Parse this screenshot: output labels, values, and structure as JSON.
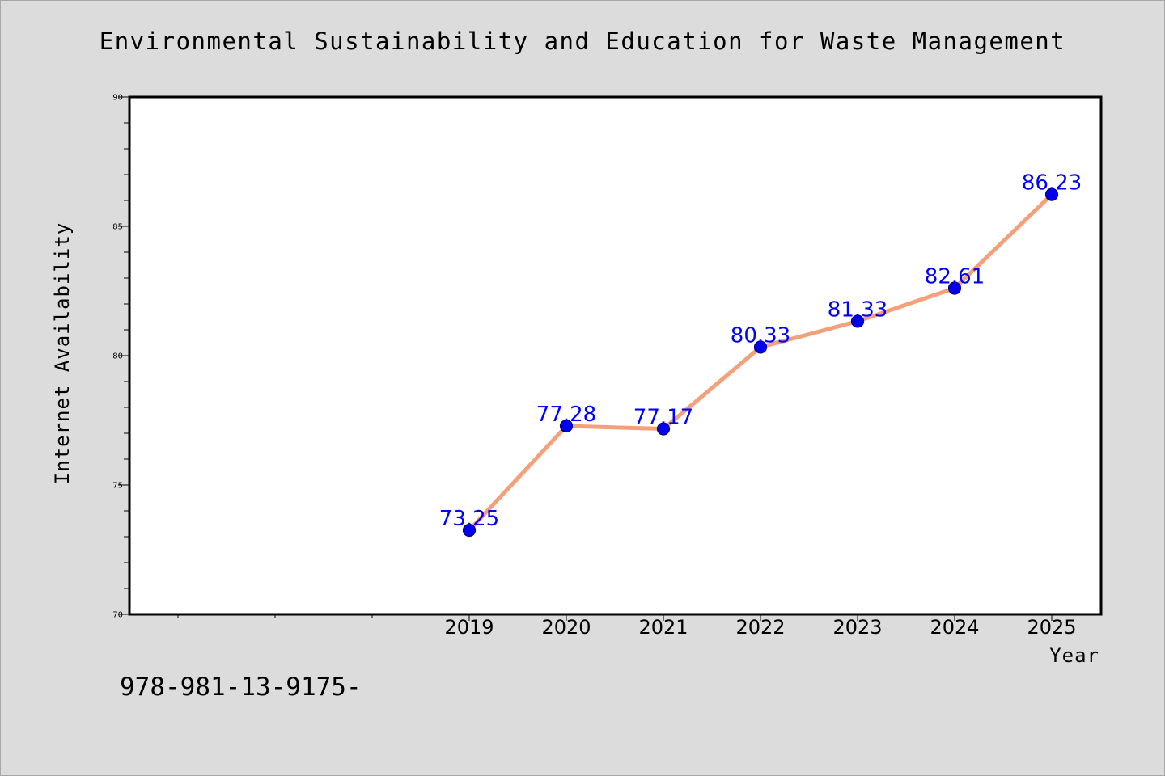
{
  "title": "Environmental Sustainability and Education for Waste Management",
  "footer_text": "978-981-13-9175-",
  "colors": {
    "background": "#dcdcdc",
    "plot_background": "#ffffff",
    "line": "#f4a07a",
    "marker": "#0000ee",
    "data_label": "#0000ff"
  },
  "chart_data": {
    "type": "line",
    "title": "Environmental Sustainability and Education for Waste Management",
    "xlabel": "Year",
    "ylabel": "Internet Availability",
    "x": [
      "2019",
      "2020",
      "2021",
      "2022",
      "2023",
      "2024",
      "2025"
    ],
    "series": [
      {
        "values": [
          73.25,
          77.28,
          77.17,
          80.33,
          81.33,
          82.61,
          86.23
        ],
        "labels": [
          "73.25",
          "77.28",
          "77.17",
          "80.33",
          "81.33",
          "82.61",
          "86.23"
        ]
      }
    ],
    "ylim": [
      70,
      90
    ],
    "yticks": [
      "70",
      "75",
      "80",
      "85",
      "90"
    ],
    "grid": false,
    "legend": "none"
  }
}
